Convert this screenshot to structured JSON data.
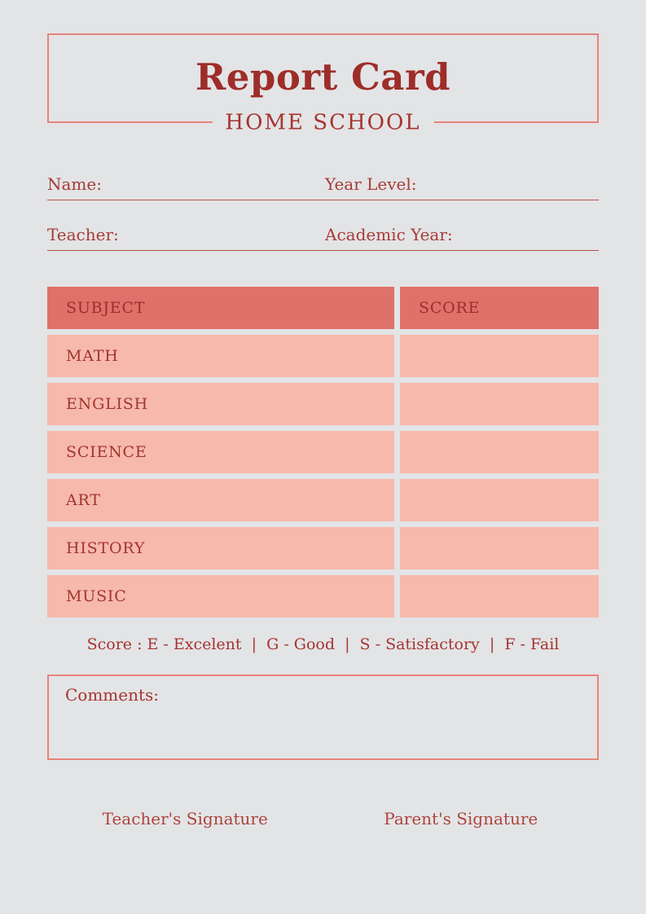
{
  "page": {
    "title": "Report Card",
    "subtitle": "HOME SCHOOL"
  },
  "fields": {
    "name": {
      "label": "Name:",
      "value": ""
    },
    "year_level": {
      "label": "Year Level:",
      "value": ""
    },
    "teacher": {
      "label": "Teacher:",
      "value": ""
    },
    "academic_year": {
      "label": "Academic Year:",
      "value": ""
    }
  },
  "table": {
    "headers": [
      "SUBJECT",
      "SCORE"
    ],
    "rows": [
      {
        "subject": "MATH",
        "score": ""
      },
      {
        "subject": "ENGLISH",
        "score": ""
      },
      {
        "subject": "SCIENCE",
        "score": ""
      },
      {
        "subject": "ART",
        "score": ""
      },
      {
        "subject": "HISTORY",
        "score": ""
      },
      {
        "subject": "MUSIC",
        "score": ""
      }
    ]
  },
  "legend": {
    "text": "Score : E - Excelent  |  G - Good  |  S - Satisfactory  |  F - Fail"
  },
  "comments": {
    "label": "Comments:",
    "value": ""
  },
  "signatures": {
    "teacher": "Teacher's Signature",
    "parent": "Parent's Signature"
  },
  "colors": {
    "background": "#e3e4e6",
    "frame_border": "#e8837b",
    "header_cell_bg": "#e0716a",
    "row_cell_bg": "#f6b9ab",
    "title_red": "#9e2d29",
    "text_red": "#a63c36",
    "underline_red": "#b5524b"
  }
}
